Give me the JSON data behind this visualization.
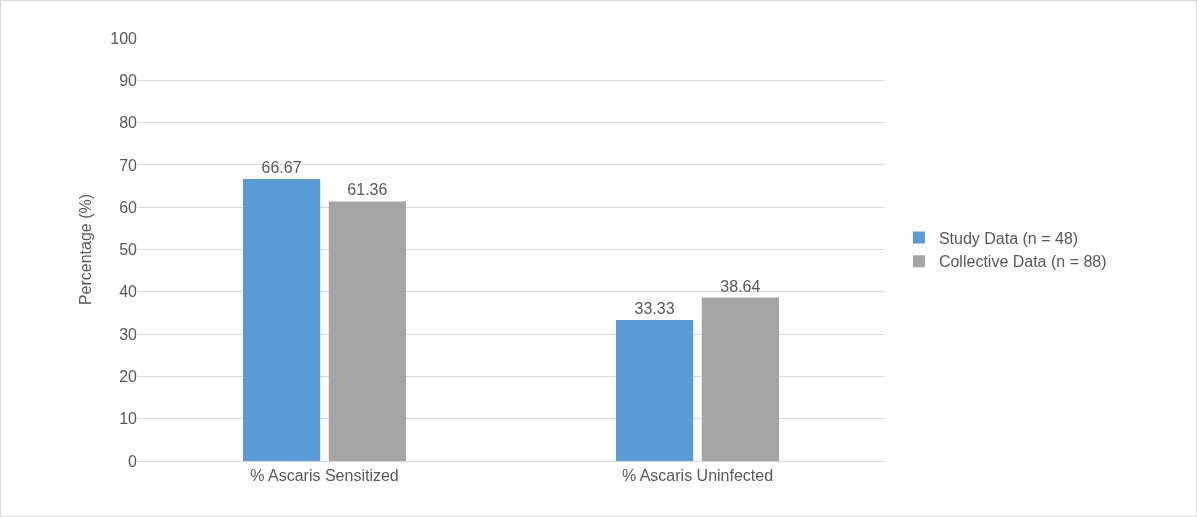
{
  "chart_data": {
    "type": "bar",
    "ylabel": "Percentage (%)",
    "categories": [
      "% Ascaris Sensitized",
      "% Ascaris Uninfected"
    ],
    "series": [
      {
        "name": "Study Data (n = 48)",
        "color": "#5b9bd5",
        "values": [
          66.67,
          33.33
        ]
      },
      {
        "name": "Collective Data (n = 88)",
        "color": "#a5a5a5",
        "values": [
          61.36,
          38.64
        ]
      }
    ],
    "ylim": [
      0,
      100
    ],
    "yticks": [
      0,
      10,
      20,
      30,
      40,
      50,
      60,
      70,
      80,
      90,
      100
    ],
    "grid": "y",
    "legend": "right",
    "data_labels": true
  }
}
